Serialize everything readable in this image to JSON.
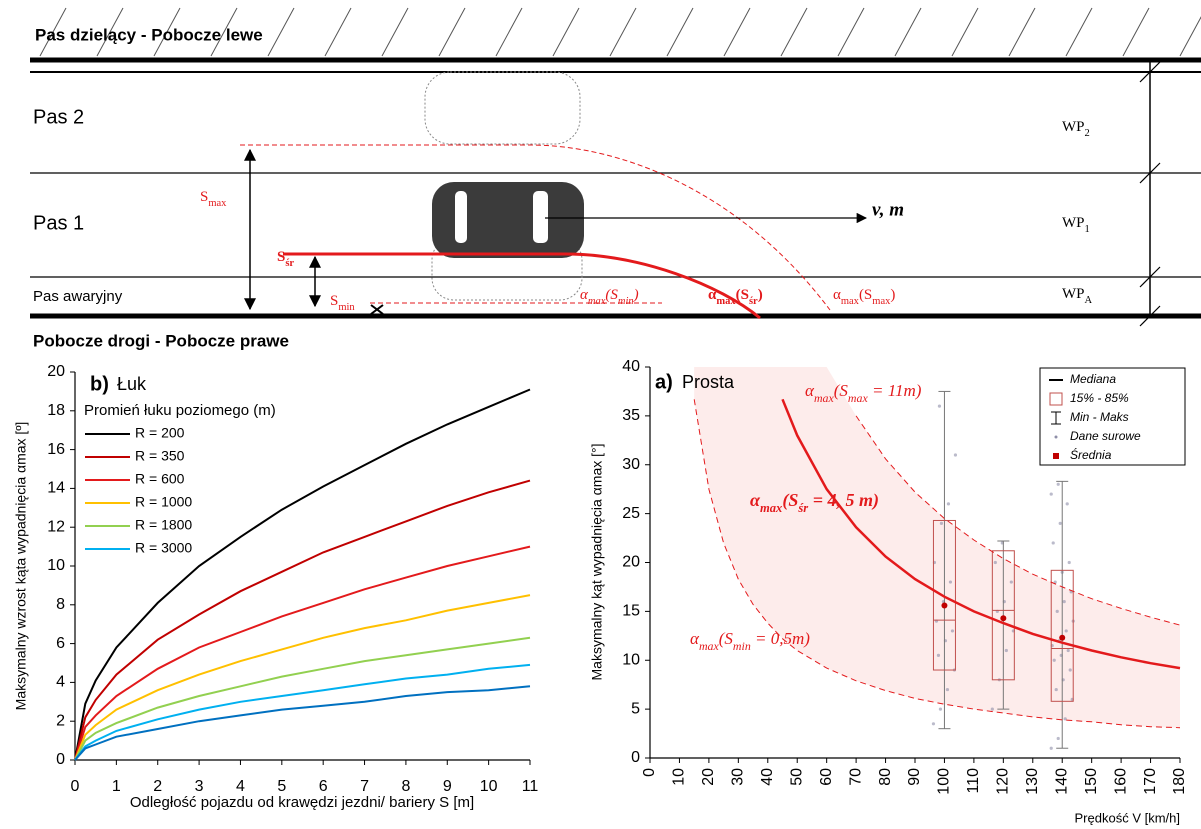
{
  "diagram": {
    "top_label": "Pas dzielący - Pobocze lewe",
    "bottom_label": "Pobocze drogi - Pobocze prawe",
    "lanes": [
      "Pas 2",
      "Pas 1",
      "Pas awaryjny"
    ],
    "lane_widths": [
      [
        {
          "text": "WP"
        },
        {
          "text": "2",
          "sub": true
        }
      ],
      [
        {
          "text": "WP"
        },
        {
          "text": "1",
          "sub": true
        }
      ],
      [
        {
          "text": "WP"
        },
        {
          "text": "A",
          "sub": true
        }
      ]
    ],
    "offsets": [
      [
        {
          "text": "S"
        },
        {
          "text": "max",
          "sub": true
        }
      ],
      [
        {
          "text": "S"
        },
        {
          "text": "śr",
          "sub": true
        }
      ],
      [
        {
          "text": "S"
        },
        {
          "text": "min",
          "sub": true
        }
      ]
    ],
    "velocity": "v, m",
    "angles": [
      [
        {
          "text": "α"
        },
        {
          "text": "max",
          "sub": true
        },
        {
          "text": "(S"
        },
        {
          "text": "min",
          "sub": true
        },
        {
          "text": ")"
        }
      ],
      [
        {
          "text": "α"
        },
        {
          "text": "max",
          "sub": true
        },
        {
          "text": "(S"
        },
        {
          "text": "śr",
          "sub": true
        },
        {
          "text": ")"
        }
      ],
      [
        {
          "text": "α"
        },
        {
          "text": "max",
          "sub": true
        },
        {
          "text": "(S"
        },
        {
          "text": "max",
          "sub": true
        },
        {
          "text": ")"
        }
      ]
    ]
  },
  "chart_data": [
    {
      "type": "line",
      "panel": "b)",
      "title": "Łuk",
      "legend_title": "Promień łuku poziomego (m)",
      "x_label": "Odległość pojazdu od krawędzi jezdni/ bariery S [m]",
      "y_label": "Maksymalny wzrost kąta wypadnięcia αmax [º]",
      "x": [
        0,
        0.25,
        0.5,
        1,
        2,
        3,
        4,
        5,
        6,
        7,
        8,
        9,
        10,
        11
      ],
      "series": [
        {
          "name": "R = 200",
          "color": "#000000",
          "values": [
            0,
            2.9,
            4.1,
            5.8,
            8.1,
            10.0,
            11.5,
            12.9,
            14.1,
            15.2,
            16.3,
            17.3,
            18.2,
            19.1
          ]
        },
        {
          "name": "R = 350",
          "color": "#c00000",
          "values": [
            0,
            2.2,
            3.1,
            4.4,
            6.2,
            7.5,
            8.7,
            9.7,
            10.7,
            11.5,
            12.3,
            13.1,
            13.8,
            14.4
          ]
        },
        {
          "name": "R = 600",
          "color": "#e31a1c",
          "values": [
            0,
            1.7,
            2.3,
            3.3,
            4.7,
            5.8,
            6.6,
            7.4,
            8.1,
            8.8,
            9.4,
            10.0,
            10.5,
            11.0
          ]
        },
        {
          "name": "R = 1000",
          "color": "#ffc000",
          "values": [
            0,
            1.3,
            1.8,
            2.6,
            3.6,
            4.4,
            5.1,
            5.7,
            6.3,
            6.8,
            7.2,
            7.7,
            8.1,
            8.5
          ]
        },
        {
          "name": "R = 1800",
          "color": "#92d050",
          "values": [
            0,
            1.0,
            1.4,
            1.9,
            2.7,
            3.3,
            3.8,
            4.3,
            4.7,
            5.1,
            5.4,
            5.7,
            6.0,
            6.3
          ]
        },
        {
          "name": "R = 3000",
          "color": "#00b0f0",
          "values": [
            0,
            0.7,
            1.0,
            1.5,
            2.1,
            2.6,
            3.0,
            3.3,
            3.6,
            3.9,
            4.2,
            4.4,
            4.7,
            4.9
          ]
        },
        {
          "name": null,
          "color": "#0070c0",
          "values": [
            0,
            0.6,
            0.8,
            1.2,
            1.6,
            2.0,
            2.3,
            2.6,
            2.8,
            3.0,
            3.3,
            3.5,
            3.6,
            3.8
          ]
        }
      ],
      "xlim": [
        0,
        11
      ],
      "xticks": [
        0,
        1,
        2,
        3,
        4,
        5,
        6,
        7,
        8,
        9,
        10,
        11
      ],
      "ylim": [
        0,
        20
      ],
      "yticks": [
        0,
        2,
        4,
        6,
        8,
        10,
        12,
        14,
        16,
        18,
        20
      ]
    },
    {
      "type": "box",
      "panel": "a)",
      "title": "Prosta",
      "x_label": "Prędkość V [km/h]",
      "y_label": "Maksymalny kąt wypadnięcia αmax [°]",
      "x": [
        15,
        20,
        25,
        30,
        35,
        40,
        45,
        50,
        60,
        70,
        80,
        90,
        100,
        110,
        120,
        130,
        140,
        150,
        160,
        170,
        180
      ],
      "band_color": "#fdeceb",
      "series": [
        {
          "label": [
            {
              "text": "α"
            },
            {
              "text": "max",
              "sub": true
            },
            {
              "text": "(S"
            },
            {
              "text": "max",
              "sub": true
            },
            {
              "text": " = 11m)"
            }
          ],
          "color": "#e31a1c",
          "dashed": true,
          "values": [
            null,
            null,
            null,
            null,
            null,
            null,
            null,
            null,
            null,
            35,
            30.6,
            27.2,
            24.5,
            22.3,
            20.4,
            18.8,
            17.5,
            16.3,
            15.3,
            14.4,
            13.6
          ]
        },
        {
          "label": [
            {
              "text": "α"
            },
            {
              "text": "max",
              "sub": true
            },
            {
              "text": "(S"
            },
            {
              "text": "śr",
              "sub": true
            },
            {
              "text": " = 4, 5 m)"
            }
          ],
          "color": "#e31a1c",
          "dashed": false,
          "values": [
            null,
            null,
            null,
            null,
            null,
            null,
            36.7,
            33,
            27.5,
            23.6,
            20.6,
            18.3,
            16.5,
            15,
            13.8,
            12.7,
            11.8,
            11,
            10.3,
            9.7,
            9.2
          ]
        },
        {
          "label": [
            {
              "text": "α"
            },
            {
              "text": "max",
              "sub": true
            },
            {
              "text": "(S"
            },
            {
              "text": "min",
              "sub": true
            },
            {
              "text": " = 0,5m)"
            }
          ],
          "color": "#e31a1c",
          "dashed": true,
          "values": [
            36.7,
            27.5,
            22,
            18.3,
            15.7,
            13.8,
            12.2,
            11,
            9.2,
            7.9,
            6.9,
            6.1,
            5.5,
            5,
            4.6,
            4.2,
            3.9,
            3.7,
            3.4,
            3.2,
            3.1
          ]
        }
      ],
      "boxes": [
        {
          "x": 100,
          "min": 3,
          "q15": 9,
          "median": 14.1,
          "q85": 24.3,
          "max": 37.5,
          "mean": 15.6,
          "raw": [
            3.5,
            5,
            7,
            9,
            10.5,
            12,
            13,
            14,
            16,
            18,
            20,
            24,
            26,
            31,
            36
          ]
        },
        {
          "x": 120,
          "min": 5,
          "q15": 8,
          "median": 15.1,
          "q85": 21.2,
          "max": 22.2,
          "mean": 14.3,
          "raw": [
            5,
            8,
            11,
            13,
            15,
            16,
            18,
            20,
            22
          ]
        },
        {
          "x": 140,
          "min": 1,
          "q15": 5.8,
          "median": 11.2,
          "q85": 19.2,
          "max": 28.3,
          "mean": 12.3,
          "raw": [
            1,
            2,
            4,
            6,
            7,
            8,
            9,
            10,
            10.5,
            11,
            11.5,
            12,
            13,
            14,
            15,
            16,
            17,
            18,
            19,
            20,
            22,
            24,
            26,
            27,
            28
          ]
        }
      ],
      "box_color": "#c0504d",
      "mean_color": "#c00000",
      "raw_color": "#8e8ea8",
      "legend": [
        "Mediana",
        "15% - 85%",
        "Min - Maks",
        "Dane surowe",
        "Średnia"
      ],
      "xlim": [
        0,
        180
      ],
      "xticks": [
        0,
        10,
        20,
        30,
        40,
        50,
        60,
        70,
        80,
        90,
        100,
        110,
        120,
        130,
        140,
        150,
        160,
        170,
        180
      ],
      "ylim": [
        0,
        40
      ],
      "yticks": [
        0,
        5,
        10,
        15,
        20,
        25,
        30,
        35,
        40
      ]
    }
  ]
}
